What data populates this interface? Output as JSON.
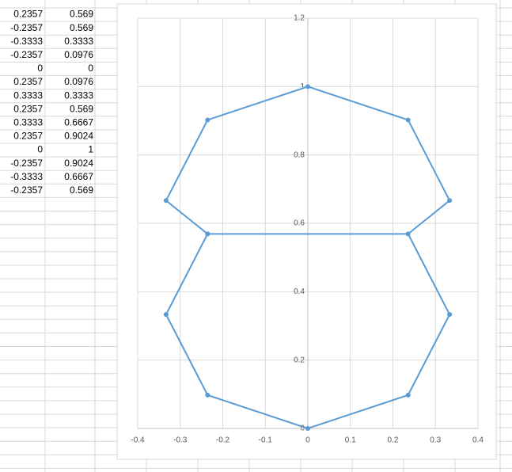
{
  "table": {
    "rows": [
      [
        0.2357,
        0.569
      ],
      [
        -0.2357,
        0.569
      ],
      [
        -0.3333,
        0.3333
      ],
      [
        -0.2357,
        0.0976
      ],
      [
        0,
        0
      ],
      [
        0.2357,
        0.0976
      ],
      [
        0.3333,
        0.3333
      ],
      [
        0.2357,
        0.569
      ],
      [
        0.3333,
        0.6667
      ],
      [
        0.2357,
        0.9024
      ],
      [
        0,
        1
      ],
      [
        -0.2357,
        0.9024
      ],
      [
        -0.3333,
        0.6667
      ],
      [
        -0.2357,
        0.569
      ]
    ]
  },
  "chart_data": {
    "type": "scatter-line",
    "series": [
      {
        "color": "#5b9bd5",
        "x": [
          0.2357,
          -0.2357,
          -0.3333,
          -0.2357,
          0,
          0.2357,
          0.3333,
          0.2357,
          0.3333,
          0.2357,
          0,
          -0.2357,
          -0.3333,
          -0.2357
        ],
        "values": [
          0.569,
          0.569,
          0.3333,
          0.0976,
          0,
          0.0976,
          0.3333,
          0.569,
          0.6667,
          0.9024,
          1,
          0.9024,
          0.6667,
          0.569
        ]
      }
    ],
    "xlim": [
      -0.4,
      0.4
    ],
    "xticks": [
      -0.4,
      -0.3,
      -0.2,
      -0.1,
      0,
      0.1,
      0.2,
      0.3,
      0.4
    ],
    "ylim": [
      0,
      1.2
    ],
    "yticks": [
      0,
      0.2,
      0.4,
      0.6,
      0.8,
      1,
      1.2
    ],
    "grid": true
  }
}
